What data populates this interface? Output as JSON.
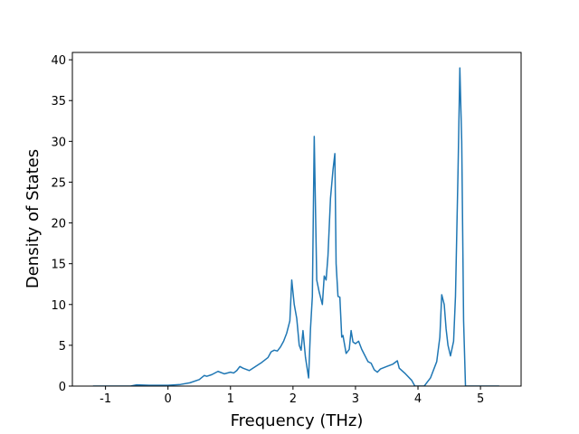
{
  "chart_data": {
    "type": "line",
    "x_label": "Frequency (THz)",
    "y_label": "Density of States",
    "series": [
      {
        "color": "#1f77b4",
        "x": [
          -1.2,
          -0.6,
          -0.5,
          -0.3,
          0,
          0.2,
          0.35,
          0.5,
          0.58,
          0.62,
          0.7,
          0.8,
          0.9,
          1.0,
          1.05,
          1.1,
          1.15,
          1.2,
          1.3,
          1.4,
          1.5,
          1.6,
          1.65,
          1.7,
          1.75,
          1.8,
          1.85,
          1.9,
          1.95,
          1.98,
          2.02,
          2.06,
          2.1,
          2.13,
          2.16,
          2.2,
          2.25,
          2.28,
          2.31,
          2.34,
          2.38,
          2.42,
          2.47,
          2.5,
          2.53,
          2.56,
          2.6,
          2.64,
          2.67,
          2.69,
          2.72,
          2.75,
          2.78,
          2.8,
          2.85,
          2.9,
          2.93,
          2.96,
          3.0,
          3.05,
          3.1,
          3.2,
          3.25,
          3.3,
          3.35,
          3.4,
          3.5,
          3.6,
          3.67,
          3.7,
          3.8,
          3.9,
          3.95,
          4.1,
          4.2,
          4.3,
          4.35,
          4.38,
          4.42,
          4.45,
          4.48,
          4.52,
          4.57,
          4.6,
          4.64,
          4.67,
          4.7,
          4.73,
          4.76,
          5.3
        ],
        "values": [
          0,
          0,
          0.15,
          0.1,
          0.1,
          0.2,
          0.4,
          0.8,
          1.3,
          1.2,
          1.4,
          1.8,
          1.5,
          1.7,
          1.6,
          1.9,
          2.4,
          2.2,
          1.9,
          2.4,
          2.9,
          3.5,
          4.2,
          4.4,
          4.3,
          4.8,
          5.5,
          6.5,
          8.0,
          13.0,
          10.0,
          8.3,
          5.0,
          4.4,
          6.8,
          3.5,
          1.0,
          7.0,
          11.0,
          30.6,
          13.0,
          11.5,
          10.0,
          13.5,
          13.0,
          16,
          23,
          26.5,
          28.5,
          15,
          11,
          10.9,
          6.0,
          6.2,
          4.0,
          4.5,
          6.8,
          5.4,
          5.2,
          5.5,
          4.5,
          3.0,
          2.8,
          2.0,
          1.7,
          2.1,
          2.4,
          2.7,
          3.1,
          2.2,
          1.5,
          0.7,
          0,
          0,
          1.0,
          3.0,
          6.0,
          11.2,
          10.0,
          7.0,
          5.0,
          3.7,
          5.5,
          11,
          26,
          39,
          30,
          8,
          0,
          0
        ]
      }
    ],
    "xlim": [
      -1.53,
      5.65
    ],
    "ylim": [
      0,
      40.9
    ],
    "xticks": [
      -1,
      0,
      1,
      2,
      3,
      4,
      5
    ],
    "yticks": [
      0,
      5,
      10,
      15,
      20,
      25,
      30,
      35,
      40
    ]
  }
}
